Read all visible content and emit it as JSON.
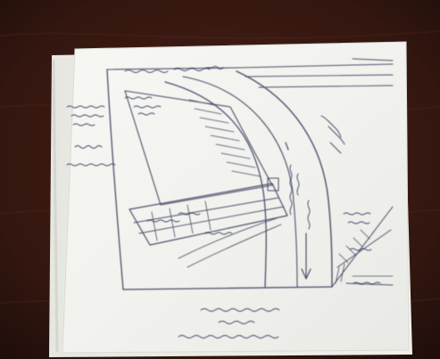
{
  "image": {
    "subject": "photo",
    "background_color": "#3b1d17",
    "paper_color": "#f3f3f0",
    "ink_color": "#3a3f5a"
  }
}
